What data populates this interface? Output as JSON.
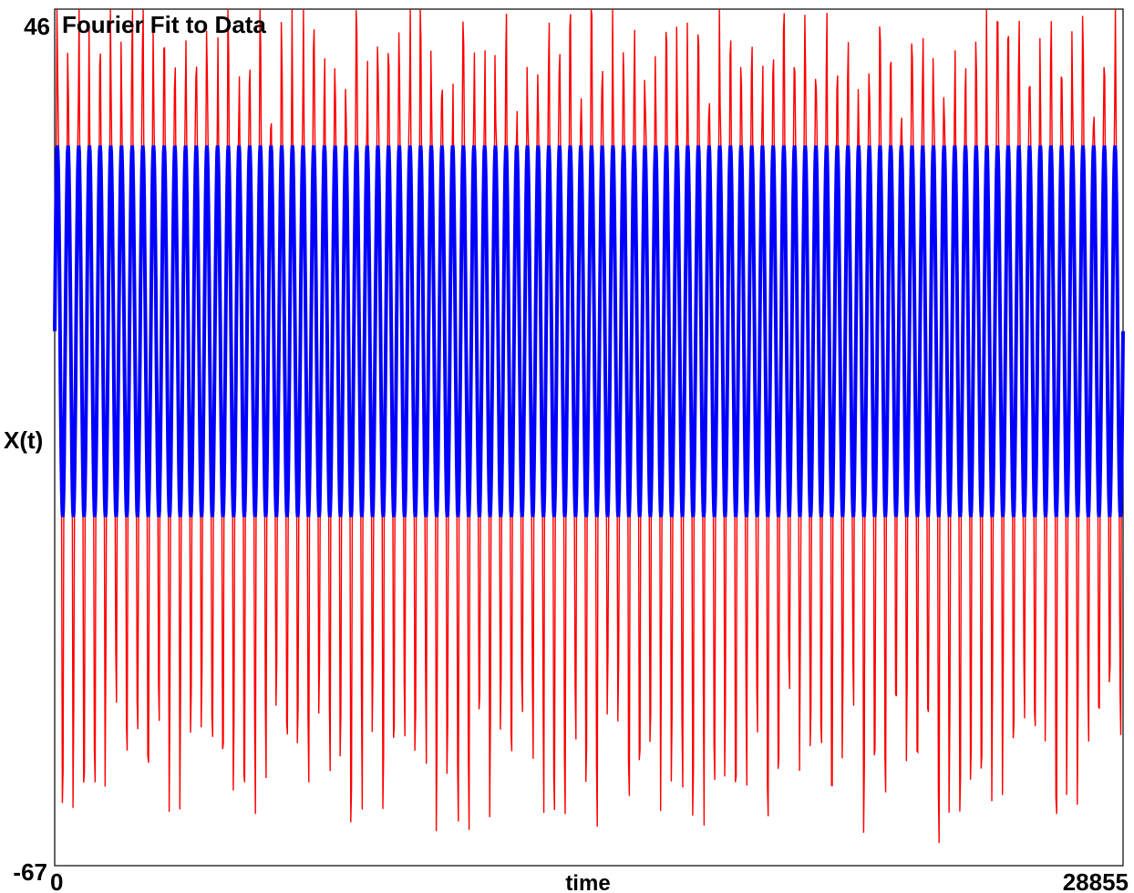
{
  "chart_data": {
    "type": "line",
    "title": "Fourier Fit to Data",
    "xlabel": "time",
    "ylabel": "X(t)",
    "xlim": [
      0,
      28855
    ],
    "ylim": [
      -67,
      46
    ],
    "x_tick_labels": [
      "0",
      "28855"
    ],
    "y_tick_labels": [
      "46",
      "-67"
    ],
    "grid": false,
    "legend": "none",
    "series": [
      {
        "color": "#ff0000",
        "role": "data",
        "value_range": [
          -67,
          46
        ],
        "approx_cycles": 100,
        "typical_peak": 32,
        "typical_trough": -42
      },
      {
        "color": "#0000ff",
        "role": "fourier-fit",
        "value_range": [
          -21,
          28
        ],
        "approx_cycles": 100,
        "peak": 28,
        "trough": -21
      }
    ]
  }
}
